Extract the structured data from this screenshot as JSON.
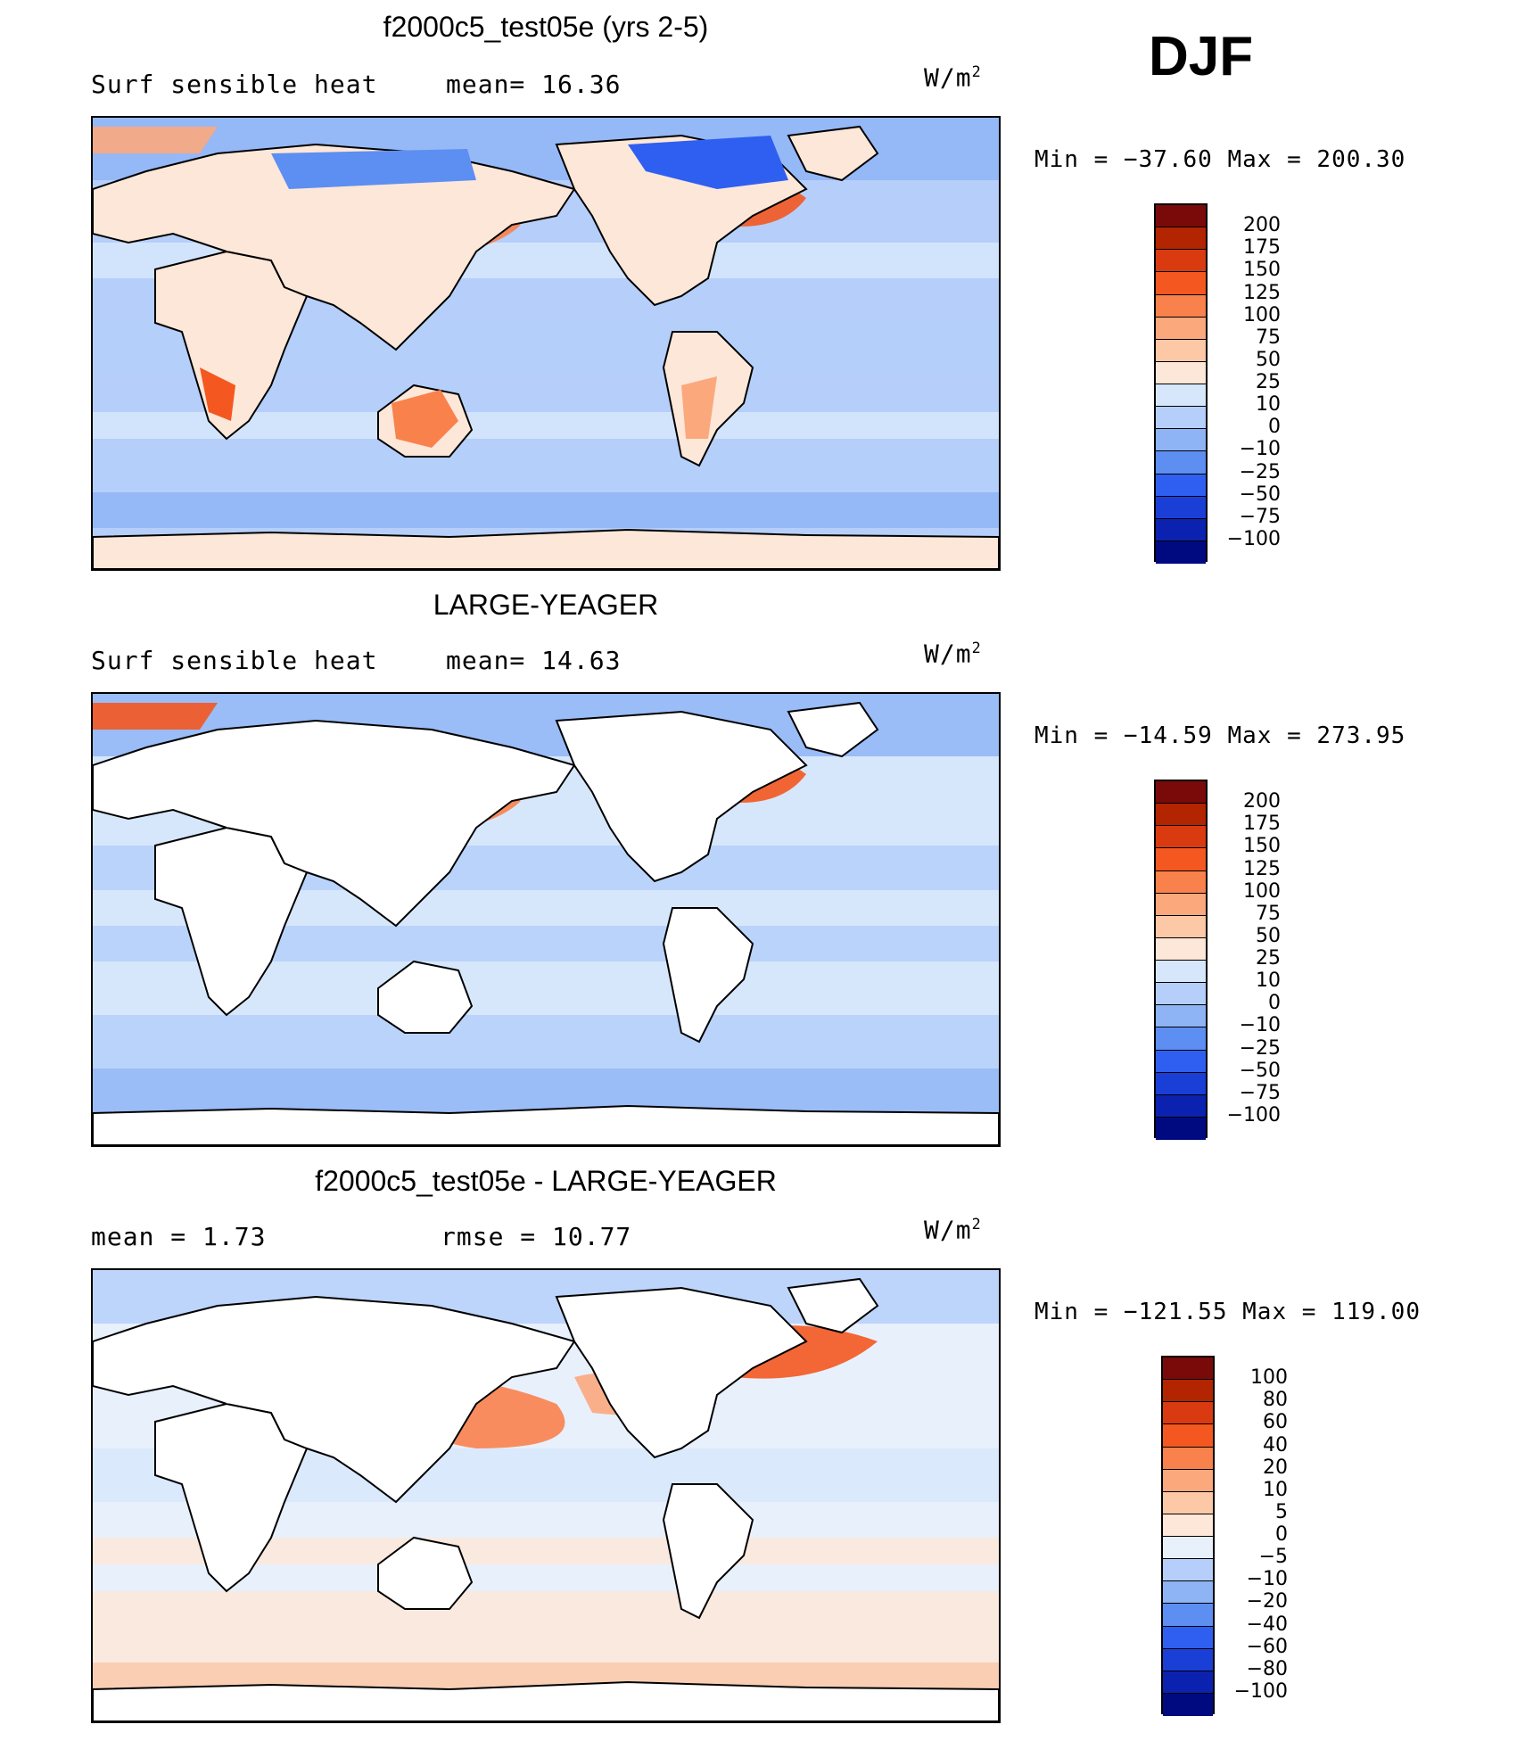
{
  "season": "DJF",
  "panels": [
    {
      "title": "f2000c5_test05e (yrs 2-5)",
      "left_label": "Surf  sensible heat",
      "mid_label": "mean=   16.36",
      "units": "W/m",
      "units_sup": "2",
      "minmax": "Min  =  −37.60  Max  =  200.30",
      "land_fill": true
    },
    {
      "title": "LARGE-YEAGER",
      "left_label": "Surf  sensible heat",
      "mid_label": "mean=   14.63",
      "units": "W/m",
      "units_sup": "2",
      "minmax": "Min  =  −14.59  Max  =  273.95",
      "land_fill": false
    },
    {
      "title": "f2000c5_test05e - LARGE-YEAGER",
      "left_label": "mean  =     1.73",
      "mid_label": "rmse  =    10.77",
      "units": "W/m",
      "units_sup": "2",
      "minmax": "Min  =  −121.55  Max  =  119.00",
      "land_fill": false
    }
  ],
  "colorbars": {
    "main": {
      "labels": [
        "200",
        "175",
        "150",
        "125",
        "100",
        "75",
        "50",
        "25",
        "10",
        "0",
        "−10",
        "−25",
        "−50",
        "−75",
        "−100"
      ],
      "colors": [
        "#7a0a0a",
        "#b32400",
        "#d93a0f",
        "#f4571f",
        "#f9814c",
        "#fba87d",
        "#fcc8a6",
        "#fde7d8",
        "#d7e7fb",
        "#b5cffa",
        "#8fb4f6",
        "#5d8ef2",
        "#2f5ff0",
        "#1a3fd6",
        "#0b22b0",
        "#000a80"
      ]
    },
    "diff": {
      "labels": [
        "100",
        "80",
        "60",
        "40",
        "20",
        "10",
        "5",
        "0",
        "−5",
        "−10",
        "−20",
        "−40",
        "−60",
        "−80",
        "−100"
      ],
      "colors": [
        "#7a0a0a",
        "#b32400",
        "#d93a0f",
        "#f4571f",
        "#f9814c",
        "#fba87d",
        "#fcc8a6",
        "#fde7d8",
        "#e8f0fc",
        "#b5cffa",
        "#8fb4f6",
        "#5d8ef2",
        "#2f5ff0",
        "#1a3fd6",
        "#0b22b0",
        "#000a80"
      ]
    }
  },
  "chart_data": {
    "type": "heatmap",
    "description_note": "",
    "maps": [
      {
        "name": "f2000c5_test05e (yrs 2-5)",
        "variable": "Surf  sensible heat",
        "mean": 16.36,
        "min": -37.6,
        "max": 200.3,
        "units": "W/m2",
        "levels": [
          -100,
          -75,
          -50,
          -25,
          -10,
          0,
          10,
          25,
          50,
          75,
          100,
          125,
          150,
          175,
          200
        ]
      },
      {
        "name": "LARGE-YEAGER",
        "variable": "Surf  sensible heat",
        "mean": 14.63,
        "min": -14.59,
        "max": 273.95,
        "units": "W/m2",
        "levels": [
          -100,
          -75,
          -50,
          -25,
          -10,
          0,
          10,
          25,
          50,
          75,
          100,
          125,
          150,
          175,
          200
        ]
      },
      {
        "name": "f2000c5_test05e - LARGE-YEAGER",
        "mean": 1.73,
        "rmse": 10.77,
        "min": -121.55,
        "max": 119.0,
        "units": "W/m2",
        "levels": [
          -100,
          -80,
          -60,
          -40,
          -20,
          -10,
          -5,
          0,
          5,
          10,
          20,
          40,
          60,
          80,
          100
        ]
      }
    ]
  }
}
